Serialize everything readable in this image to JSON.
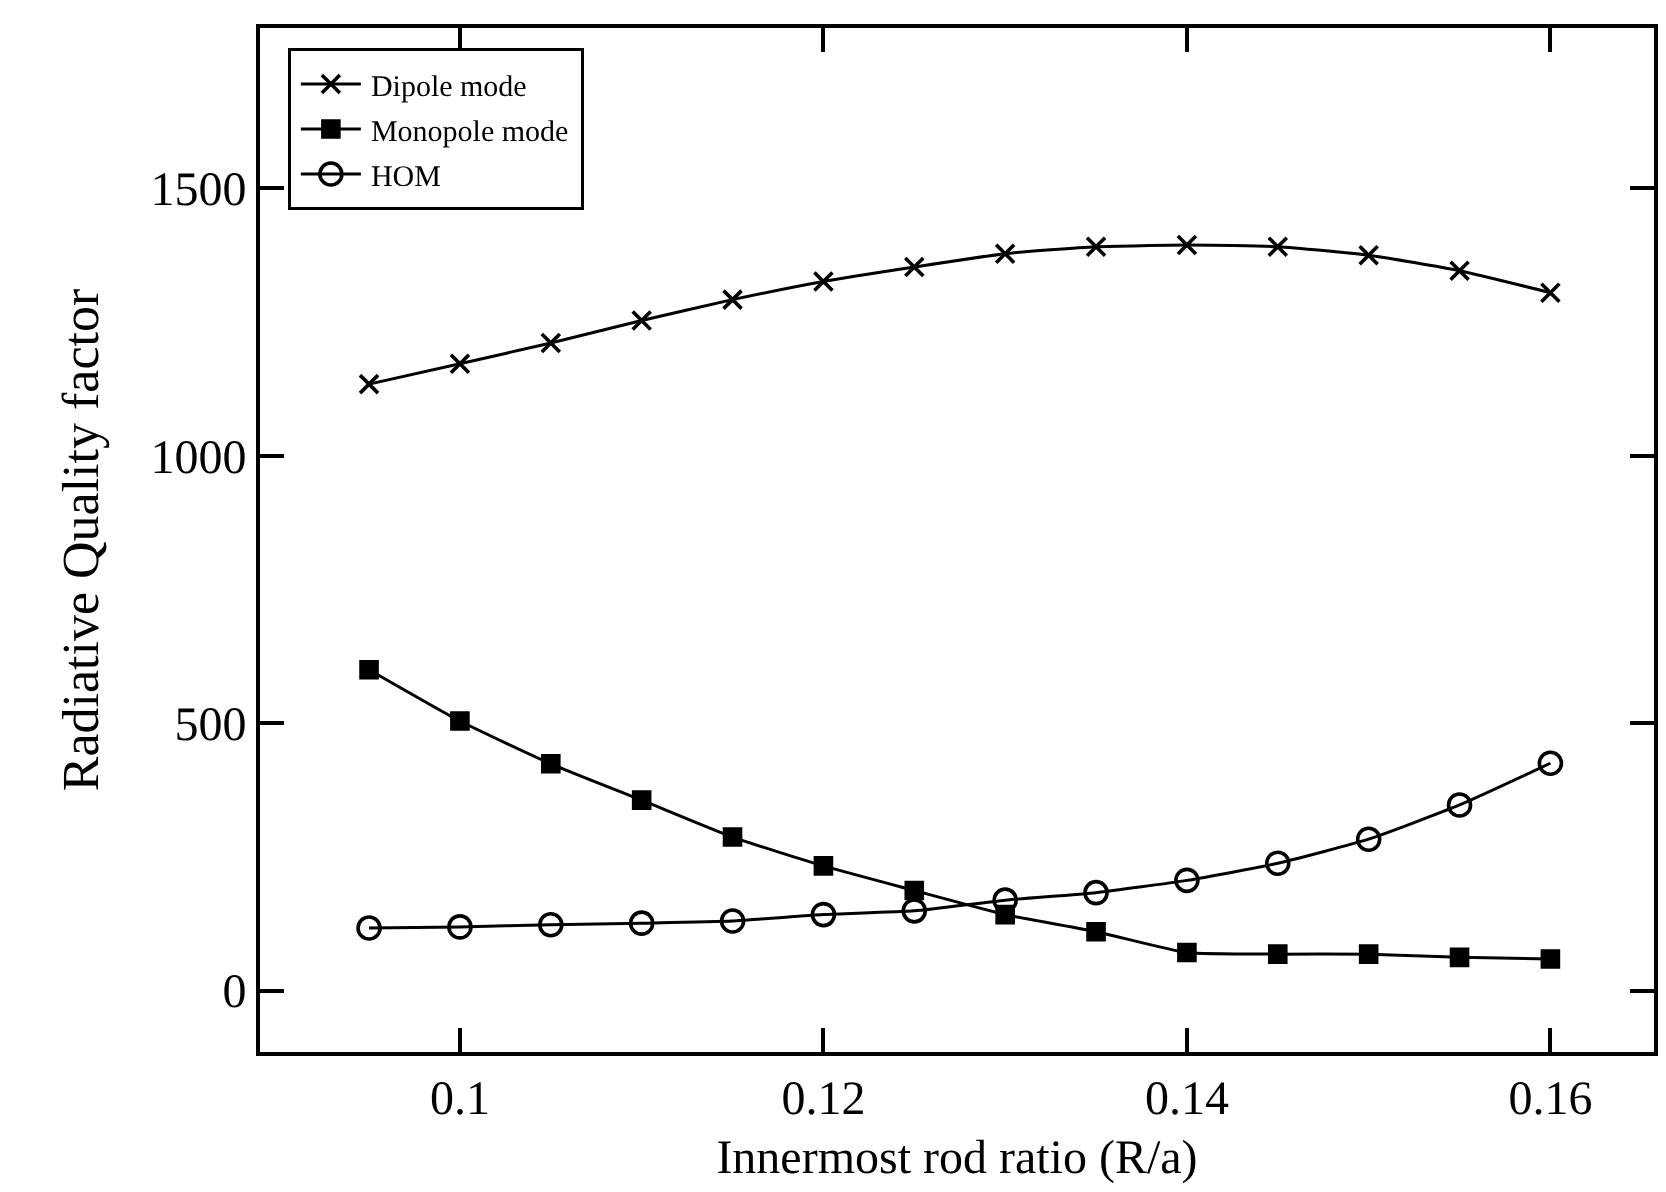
{
  "chart_data": {
    "type": "line",
    "xlabel": "Innermost rod ratio (R/a)",
    "ylabel": "Radiative Quality factor",
    "x": [
      0.095,
      0.1,
      0.105,
      0.11,
      0.115,
      0.12,
      0.125,
      0.13,
      0.135,
      0.14,
      0.145,
      0.15,
      0.155,
      0.16
    ],
    "series": [
      {
        "name": "Dipole mode",
        "color": "#000000",
        "marker": "cross",
        "values": [
          1134,
          1172,
          1211,
          1253,
          1292,
          1326,
          1353,
          1378,
          1391,
          1394,
          1391,
          1375,
          1346,
          1305
        ]
      },
      {
        "name": "Monopole mode",
        "color": "#000000",
        "marker": "square",
        "values": [
          600,
          504,
          424,
          356,
          287,
          233,
          187,
          142,
          110,
          71,
          68,
          68,
          62,
          59
        ]
      },
      {
        "name": "HOM",
        "color": "#000000",
        "marker": "circle",
        "values": [
          117,
          119,
          123,
          126,
          130,
          142,
          149,
          169,
          183,
          206,
          238,
          283,
          347,
          425
        ]
      }
    ],
    "xlim": [
      0.089,
      0.1657
    ],
    "xticks": [
      0.1,
      0.12,
      0.14,
      0.16
    ],
    "ylim": [
      -115,
      1800
    ],
    "yticks": [
      0,
      500,
      1000,
      1500
    ],
    "grid": false,
    "legend": "top left",
    "line_style": "solid"
  }
}
